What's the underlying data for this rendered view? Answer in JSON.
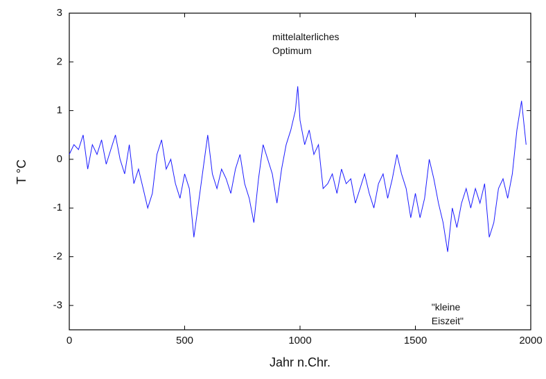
{
  "chart_data": {
    "type": "line",
    "xlabel": "Jahr n.Chr.",
    "ylabel": "T °C",
    "xlim": [
      0,
      2000
    ],
    "xticks": [
      0,
      500,
      1000,
      1500,
      2000
    ],
    "ylim": [
      -3.5,
      3
    ],
    "yticks": [
      -3,
      -2,
      -1,
      0,
      1,
      2,
      3
    ],
    "annotations": [
      {
        "x": 880,
        "y": 2.5,
        "lines": [
          "mittelalterliches",
          "Optimum"
        ]
      },
      {
        "x": 1570,
        "y": -3.05,
        "lines": [
          "\"kleine",
          "Eiszeit\""
        ]
      }
    ],
    "x": [
      0,
      20,
      40,
      60,
      80,
      100,
      120,
      140,
      160,
      180,
      200,
      220,
      240,
      260,
      280,
      300,
      320,
      340,
      360,
      380,
      400,
      420,
      440,
      460,
      480,
      500,
      520,
      540,
      560,
      580,
      600,
      620,
      640,
      660,
      680,
      700,
      720,
      740,
      760,
      780,
      800,
      820,
      840,
      860,
      880,
      900,
      920,
      940,
      960,
      980,
      990,
      1000,
      1020,
      1040,
      1060,
      1080,
      1100,
      1120,
      1140,
      1160,
      1180,
      1200,
      1220,
      1240,
      1260,
      1280,
      1300,
      1320,
      1340,
      1360,
      1380,
      1400,
      1420,
      1440,
      1460,
      1480,
      1500,
      1520,
      1540,
      1560,
      1580,
      1600,
      1620,
      1640,
      1660,
      1680,
      1700,
      1720,
      1740,
      1760,
      1780,
      1800,
      1820,
      1840,
      1860,
      1880,
      1900,
      1920,
      1940,
      1960,
      1980
    ],
    "series": [
      {
        "name": "T",
        "color": "#1a1aff",
        "values": [
          0.1,
          0.3,
          0.2,
          0.5,
          -0.2,
          0.3,
          0.1,
          0.4,
          -0.1,
          0.2,
          0.5,
          0.0,
          -0.3,
          0.3,
          -0.5,
          -0.2,
          -0.6,
          -1.0,
          -0.7,
          0.1,
          0.4,
          -0.2,
          0.0,
          -0.5,
          -0.8,
          -0.3,
          -0.6,
          -1.6,
          -0.9,
          -0.2,
          0.5,
          -0.3,
          -0.6,
          -0.2,
          -0.4,
          -0.7,
          -0.2,
          0.1,
          -0.5,
          -0.8,
          -1.3,
          -0.4,
          0.3,
          0.0,
          -0.3,
          -0.9,
          -0.2,
          0.3,
          0.6,
          1.0,
          1.5,
          0.8,
          0.3,
          0.6,
          0.1,
          0.3,
          -0.6,
          -0.5,
          -0.3,
          -0.7,
          -0.2,
          -0.5,
          -0.4,
          -0.9,
          -0.6,
          -0.3,
          -0.7,
          -1.0,
          -0.5,
          -0.3,
          -0.8,
          -0.4,
          0.1,
          -0.3,
          -0.6,
          -1.2,
          -0.7,
          -1.2,
          -0.8,
          0.0,
          -0.4,
          -0.9,
          -1.3,
          -1.9,
          -1.0,
          -1.4,
          -0.9,
          -0.6,
          -1.0,
          -0.6,
          -0.9,
          -0.5,
          -1.6,
          -1.3,
          -0.6,
          -0.4,
          -0.8,
          -0.3,
          0.6,
          1.2,
          0.3
        ]
      }
    ]
  }
}
